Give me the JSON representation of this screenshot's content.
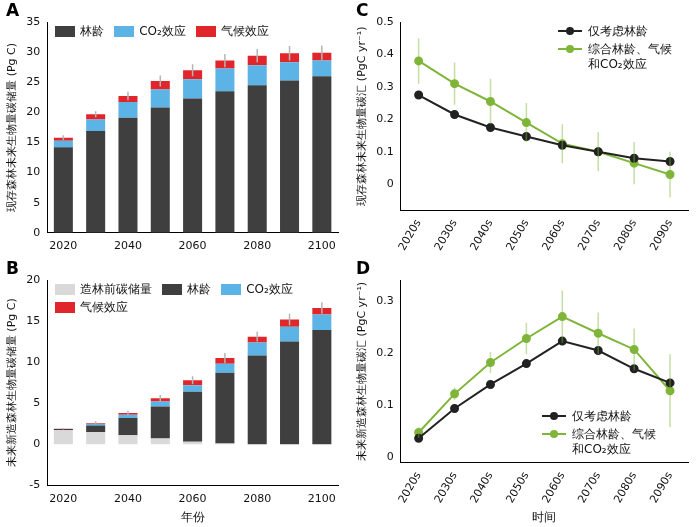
{
  "chart_data": [
    {
      "type": "bar",
      "title": "A",
      "y_label": "现存森林未来生物量碳储量 (Pg C)",
      "categories": [
        "2020",
        null,
        "2040",
        null,
        "2060",
        null,
        "2080",
        null,
        "2100"
      ],
      "stacked": true,
      "grid": false,
      "legend": "upper left",
      "ylim": [
        0,
        35
      ],
      "yticks": [
        0,
        5,
        10,
        15,
        20,
        25,
        30,
        35
      ],
      "series": [
        {
          "name": "林龄",
          "color": "#3f3f3f",
          "values": [
            14.2,
            16.9,
            19.1,
            20.8,
            22.3,
            23.5,
            24.5,
            25.3,
            26.0
          ]
        },
        {
          "name": "CO₂效应",
          "color": "#5cb3e6",
          "values": [
            1.1,
            1.9,
            2.6,
            3.0,
            3.2,
            3.8,
            3.3,
            3.0,
            2.6
          ]
        },
        {
          "name": "气候效应",
          "color": "#e0262b",
          "values": [
            0.5,
            0.9,
            1.0,
            1.4,
            1.5,
            1.3,
            1.6,
            1.5,
            1.3
          ],
          "errors": [
            0.4,
            0.5,
            0.7,
            0.9,
            1.0,
            1.1,
            1.1,
            1.2,
            1.2
          ]
        }
      ]
    },
    {
      "type": "bar",
      "title": "B",
      "y_label": "未来新造森林生物量碳储量 (Pg C)",
      "x_label": "年份",
      "categories": [
        "2020",
        null,
        "2040",
        null,
        "2060",
        null,
        "2080",
        null,
        "2100"
      ],
      "stacked": true,
      "grid": false,
      "legend": "upper left",
      "ylim": [
        -5,
        20
      ],
      "yticks": [
        -5,
        0,
        5,
        10,
        15,
        20
      ],
      "series": [
        {
          "name": "造林前碳储量",
          "color": "#d9d9d9",
          "values": [
            1.7,
            1.5,
            1.1,
            0.7,
            0.3,
            0.1,
            0,
            0,
            0
          ]
        },
        {
          "name": "林龄",
          "color": "#3f3f3f",
          "values": [
            0.15,
            0.8,
            2.1,
            3.9,
            6.1,
            8.6,
            10.8,
            12.5,
            13.9
          ]
        },
        {
          "name": "CO₂效应",
          "color": "#5cb3e6",
          "values": [
            0.02,
            0.2,
            0.4,
            0.6,
            0.8,
            1.1,
            1.6,
            1.8,
            1.9
          ]
        },
        {
          "name": "气候效应",
          "color": "#e0262b",
          "values": [
            0.02,
            0.1,
            0.2,
            0.4,
            0.6,
            0.7,
            0.7,
            0.9,
            0.8
          ],
          "errors": [
            0.1,
            0.2,
            0.3,
            0.4,
            0.5,
            0.6,
            0.6,
            0.7,
            0.7
          ]
        }
      ]
    },
    {
      "type": "line",
      "title": "C",
      "y_label": "现存森林未来生物量碳汇 (PgC yr⁻¹)",
      "categories": [
        "2020s",
        "2030s",
        "2040s",
        "2050s",
        "2060s",
        "2070s",
        "2080s",
        "2090s"
      ],
      "grid": false,
      "legend": "upper right",
      "ylim": [
        -0.08,
        0.5
      ],
      "yticks": [
        0,
        0.1,
        0.2,
        0.3,
        0.4,
        0.5
      ],
      "series": [
        {
          "name": "仅考虑林龄",
          "color": "#222222",
          "marker": "circle",
          "line_style": "solid",
          "values": [
            0.275,
            0.215,
            0.175,
            0.147,
            0.12,
            0.1,
            0.08,
            0.07
          ]
        },
        {
          "name": "综合林龄、气候和CO₂效应",
          "color": "#7fb539",
          "marker": "circle",
          "line_style": "solid",
          "values": [
            0.38,
            0.31,
            0.255,
            0.19,
            0.125,
            0.1,
            0.065,
            0.03
          ],
          "errors": [
            0.07,
            0.065,
            0.07,
            0.06,
            0.06,
            0.06,
            0.065,
            0.07
          ]
        }
      ]
    },
    {
      "type": "line",
      "title": "D",
      "y_label": "未来新造森林生物量碳汇 (PgC yr⁻¹)",
      "x_label": "时间",
      "categories": [
        "2020s",
        "2030s",
        "2040s",
        "2050s",
        "2060s",
        "2070s",
        "2080s",
        "2090s"
      ],
      "grid": false,
      "legend": "lower right",
      "ylim": [
        -0.01,
        0.34
      ],
      "yticks": [
        0,
        0.1,
        0.2,
        0.3
      ],
      "series": [
        {
          "name": "仅考虑林龄",
          "color": "#222222",
          "marker": "circle",
          "line_style": "solid",
          "values": [
            0.037,
            0.094,
            0.14,
            0.18,
            0.223,
            0.205,
            0.17,
            0.143
          ]
        },
        {
          "name": "综合林龄、气候和CO₂效应",
          "color": "#7fb539",
          "marker": "circle",
          "line_style": "solid",
          "values": [
            0.048,
            0.122,
            0.182,
            0.228,
            0.27,
            0.238,
            0.207,
            0.128
          ],
          "errors": [
            0.01,
            0.012,
            0.02,
            0.03,
            0.05,
            0.04,
            0.04,
            0.07
          ]
        }
      ]
    }
  ]
}
